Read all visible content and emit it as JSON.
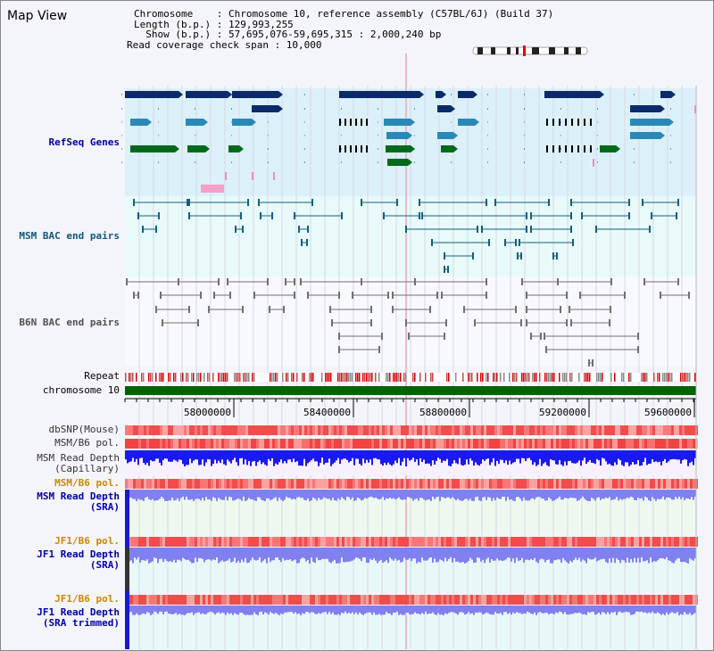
{
  "title": "Map View",
  "info": {
    "chromosome": "Chromosome    : Chromosome 10, reference assembly (C57BL/6J) (Build 37)",
    "length": "Length (b.p.) : 129,993,255",
    "show": "  Show (b.p.) : 57,695,076-59,695,315 : 2,000,240 bp",
    "coverage": "Read coverage check span : 10,000"
  },
  "tracks": {
    "refseq": "RefSeq Genes",
    "msm_bac": "MSM BAC end pairs",
    "b6n_bac": "B6N BAC end pairs",
    "repeat": "Repeat",
    "chromosome": "chromosome 10",
    "dbsnp": "dbSNP(Mouse)",
    "msm_b6_pol": "MSM/B6 pol.",
    "msm_depth_cap": "MSM Read Depth\n(Capillary)",
    "msm_b6_pol2": "MSM/B6 pol.",
    "msm_depth_sra": "MSM Read Depth\n(SRA)",
    "jf1_b6_pol": "JF1/B6 pol.",
    "jf1_depth_sra": "JF1 Read Depth\n(SRA)",
    "jf1_b6_pol2": "JF1/B6 pol.",
    "jf1_depth_trim": "JF1 Read Depth\n(SRA trimmed)"
  },
  "axis": {
    "ticks": [
      "58000000",
      "58400000",
      "58800000",
      "59200000",
      "59600000"
    ]
  },
  "colors": {
    "refseq_bg": "#dcf0fa",
    "msm_bg": "#e8fafa",
    "gene_dark": "#0a2a6a",
    "gene_mid": "#2a88b8",
    "gene_green": "#006a1a",
    "bac_msm": "#106080",
    "bac_b6n": "#707070",
    "chromosome": "#006400",
    "depth_blue": "#1a1aee",
    "depth_light": "#8080f0",
    "label_blue": "#0000aa",
    "label_orange": "#cc8800"
  }
}
